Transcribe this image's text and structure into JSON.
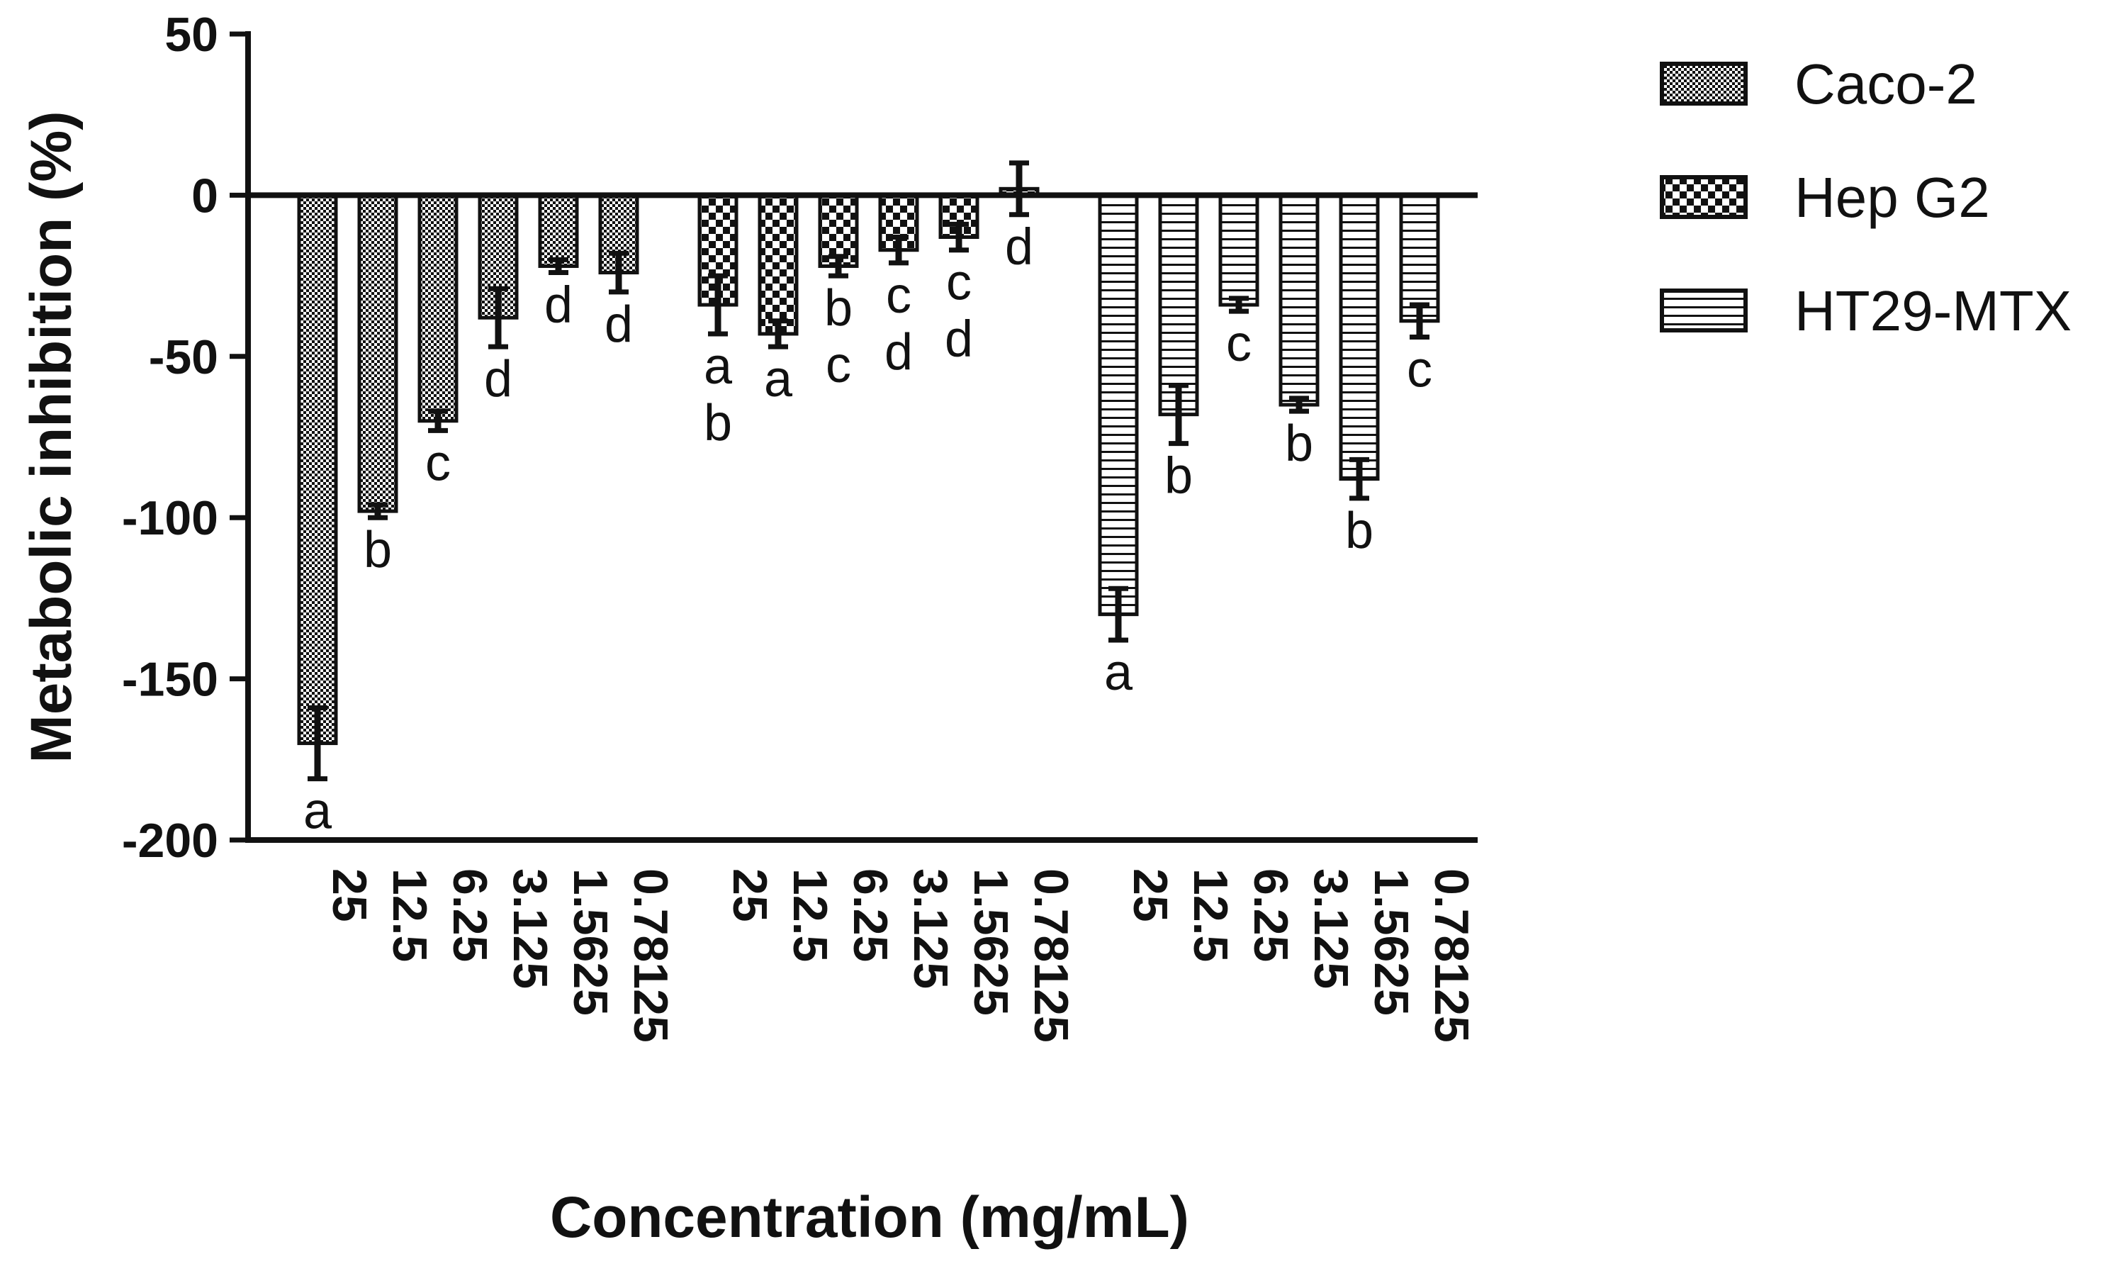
{
  "chart_data": {
    "type": "bar",
    "title": "",
    "xlabel": "Concentration (mg/mL)",
    "ylabel": "Metabolic inhibition (%)",
    "ylim": [
      -200,
      50
    ],
    "yticks": [
      "50",
      "0",
      "-50",
      "-100",
      "-150",
      "-200"
    ],
    "grid": false,
    "legend_position": "top-right",
    "series": [
      {
        "name": "Caco-2",
        "pattern": "checker-small",
        "categories": [
          "25",
          "12.5",
          "6.25",
          "3.125",
          "1.5625",
          "0.78125"
        ],
        "values": [
          -170,
          -98,
          -70,
          -38,
          -22,
          -24
        ],
        "errors": [
          11,
          2,
          3,
          9,
          2,
          6
        ],
        "letters": [
          "a",
          "b",
          "c",
          "d",
          "d",
          "d"
        ]
      },
      {
        "name": "Hep G2",
        "pattern": "checker-large",
        "categories": [
          "25",
          "12.5",
          "6.25",
          "3.125",
          "1.5625",
          "0.78125"
        ],
        "values": [
          -34,
          -43,
          -22,
          -17,
          -13,
          2
        ],
        "errors": [
          9,
          4,
          3,
          4,
          4,
          8
        ],
        "letters": [
          "a\nb",
          "a",
          "b\nc",
          "c\nd",
          "c\nd",
          "d"
        ]
      },
      {
        "name": "HT29-MTX",
        "pattern": "horizontal-lines",
        "categories": [
          "25",
          "12.5",
          "6.25",
          "3.125",
          "1.5625",
          "0.78125"
        ],
        "values": [
          -130,
          -68,
          -34,
          -65,
          -88,
          -39
        ],
        "errors": [
          8,
          9,
          2,
          2,
          6,
          5
        ],
        "letters": [
          "a",
          "b",
          "c",
          "b",
          "b",
          "c"
        ]
      }
    ]
  },
  "colors": {
    "ink": "#111111",
    "background": "#ffffff"
  }
}
